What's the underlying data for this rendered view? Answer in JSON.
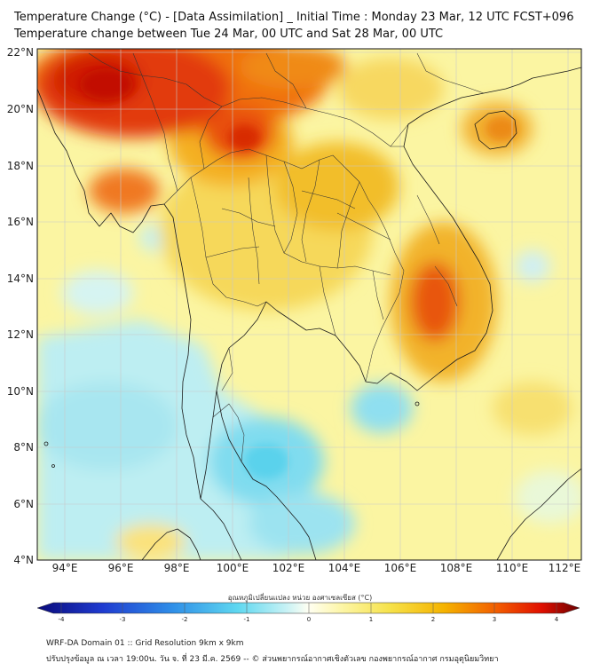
{
  "header": {
    "title_line1": "Temperature Change (°C) - [Data Assimilation] _ Initial Time : Monday 23 Mar, 12 UTC FCST+096",
    "title_line2": "Temperature change between Tue 24 Mar, 00 UTC and Sat 28 Mar, 00 UTC"
  },
  "axes": {
    "lon_labels": [
      "94°E",
      "96°E",
      "98°E",
      "100°E",
      "102°E",
      "104°E",
      "106°E",
      "108°E",
      "110°E",
      "112°E"
    ],
    "lat_labels": [
      "22°N",
      "20°N",
      "18°N",
      "16°N",
      "14°N",
      "12°N",
      "10°N",
      "8°N",
      "6°N",
      "4°N"
    ]
  },
  "colorbar": {
    "label": "อุณหภูมิเปลี่ยนแปลง หน่วย องศาเซลเซียส (°C)",
    "ticks": [
      "-4",
      "-3",
      "-2",
      "-1",
      "0",
      "1",
      "2",
      "3",
      "4"
    ],
    "range": [
      -4,
      4
    ]
  },
  "footer": {
    "line1": "WRF-DA Domain 01 :: Grid Resolution 9km x 9km",
    "line2": "ปรับปรุงข้อมูล ณ เวลา 19:00น. วัน จ. ที่ 23 มี.ค. 2569 -- © ส่วนพยากรณ์อากาศเชิงตัวเลข กองพยากรณ์อากาศ กรมอุตุนิยมวิทยา"
  },
  "colors": {
    "extreme_warm": "#cc0000",
    "warm": "#ff6600",
    "mild_warm": "#ffcc33",
    "neutral": "#ffffcc",
    "cool": "#55ddee",
    "cold": "#2244cc"
  }
}
